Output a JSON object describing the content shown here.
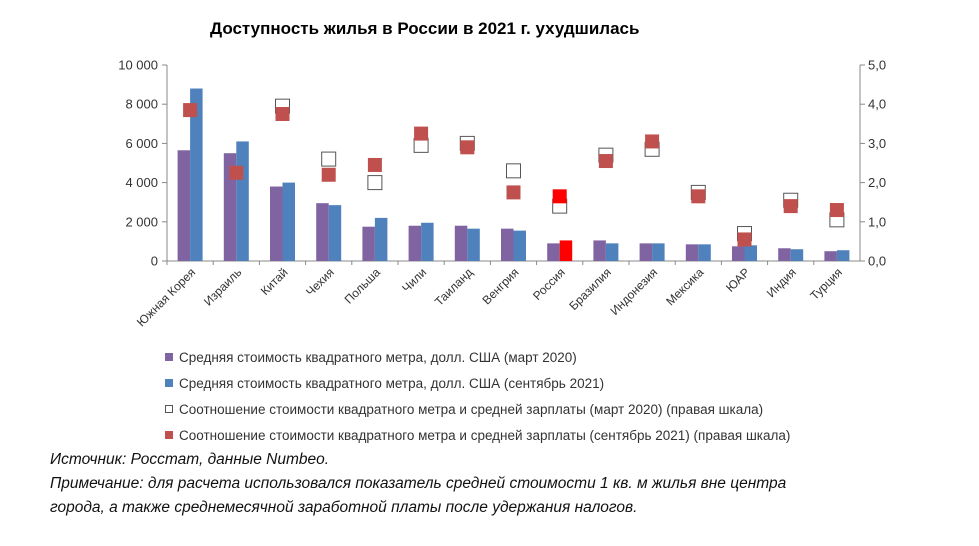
{
  "title": "Доступность жилья в России в 2021 г. ухудшилась",
  "chart_data": {
    "type": "bar",
    "categories": [
      "Южная Корея",
      "Израиль",
      "Китай",
      "Чехия",
      "Польша",
      "Чили",
      "Таиланд",
      "Венгрия",
      "Россия",
      "Бразилия",
      "Индонезия",
      "Мексика",
      "ЮАР",
      "Индия",
      "Турция"
    ],
    "series": [
      {
        "name": "Средняя стоимость квадратного метра, долл. США (март 2020)",
        "axis": "left",
        "kind": "bar",
        "values": [
          5650,
          5500,
          3800,
          2950,
          1750,
          1800,
          1800,
          1650,
          900,
          1050,
          900,
          850,
          750,
          650,
          500
        ]
      },
      {
        "name": "Средняя стоимость квадратного метра, долл. США (сентябрь 2021)",
        "axis": "left",
        "kind": "bar",
        "values": [
          8800,
          6100,
          4000,
          2850,
          2200,
          1950,
          1650,
          1550,
          1050,
          900,
          900,
          850,
          800,
          600,
          550
        ]
      },
      {
        "name": "Соотношение стоимости квадратного метра и средней зарплаты (март 2020) (правая шкала)",
        "axis": "right",
        "kind": "marker",
        "values": [
          null,
          null,
          3.95,
          2.6,
          2.0,
          2.95,
          3.0,
          2.3,
          1.4,
          2.7,
          2.85,
          1.75,
          0.7,
          1.55,
          1.05
        ]
      },
      {
        "name": "Соотношение стоимости квадратного метра и средней зарплаты (сентябрь 2021) (правая шкала)",
        "axis": "right",
        "kind": "marker",
        "values": [
          3.85,
          2.25,
          3.75,
          2.2,
          2.45,
          3.25,
          2.9,
          1.75,
          1.65,
          2.55,
          3.05,
          1.65,
          0.55,
          1.4,
          1.3
        ]
      }
    ],
    "highlight_category": "Россия",
    "ylim_left": [
      0,
      10000
    ],
    "ylim_right": [
      0,
      5
    ],
    "yticks_left": [
      "0",
      "2 000",
      "4 000",
      "6 000",
      "8 000",
      "10 000"
    ],
    "yticks_right": [
      "0,0",
      "1,0",
      "2,0",
      "3,0",
      "4,0",
      "5,0"
    ],
    "colors": {
      "bar1": "#8064a2",
      "bar2": "#4f81bd",
      "marker2": "#c0504d",
      "highlight": "#ff0000",
      "marker1_fill": "#ffffff",
      "marker1_stroke": "#555555"
    }
  },
  "legend": [
    {
      "label": "Средняя стоимость квадратного метра, долл. США (март 2020)",
      "style": "bar1"
    },
    {
      "label": "Средняя стоимость квадратного метра, долл. США (сентябрь 2021)",
      "style": "bar2"
    },
    {
      "label": "Соотношение стоимости квадратного метра и средней зарплаты (март 2020) (правая шкала)",
      "style": "marker1"
    },
    {
      "label": "Соотношение стоимости квадратного метра и средней зарплаты (сентябрь 2021) (правая шкала)",
      "style": "marker2"
    }
  ],
  "notes": {
    "source": "Источник: Росстат, данные Numbeo.",
    "note_line1": "Примечание: для расчета использовался показатель средней стоимости 1 кв. м жилья вне центра",
    "note_line2": "города, а также среднемесячной заработной платы после удержания налогов."
  }
}
